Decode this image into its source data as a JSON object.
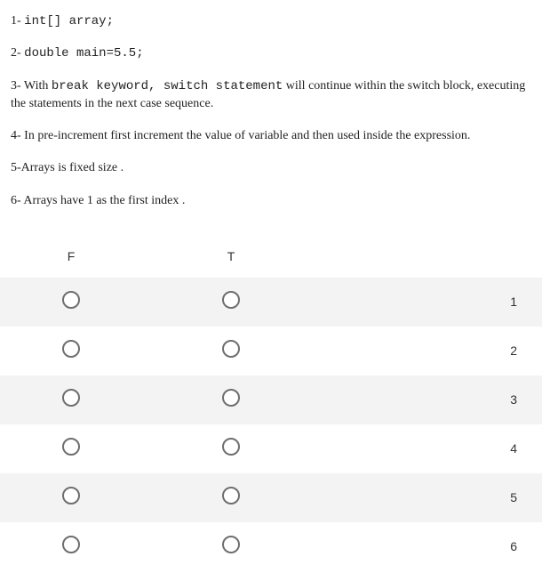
{
  "statements": [
    {
      "prefix": "1- ",
      "mono": "int[] array;",
      "rest": ""
    },
    {
      "prefix": "2- ",
      "mono": "double main=5.5;",
      "rest": ""
    },
    {
      "prefix": "3- With ",
      "mono": "break keyword, switch statement",
      "rest": " will continue within the switch block, executing the statements in the next case sequence."
    },
    {
      "prefix": "4- In pre-increment first increment the value of variable and then used inside the expression.",
      "mono": "",
      "rest": ""
    },
    {
      "prefix": "5-Arrays is fixed size .",
      "mono": "",
      "rest": ""
    },
    {
      "prefix": "6- Arrays have 1 as the first index .",
      "mono": "",
      "rest": ""
    }
  ],
  "table": {
    "headers": {
      "f": "F",
      "t": "T"
    },
    "rows": [
      {
        "num": "1"
      },
      {
        "num": "2"
      },
      {
        "num": "3"
      },
      {
        "num": "4"
      },
      {
        "num": "5"
      },
      {
        "num": "6"
      }
    ],
    "colors": {
      "odd_bg": "#f3f3f3",
      "even_bg": "#ffffff",
      "radio_border": "#6e6e6e",
      "text": "#222222"
    }
  }
}
